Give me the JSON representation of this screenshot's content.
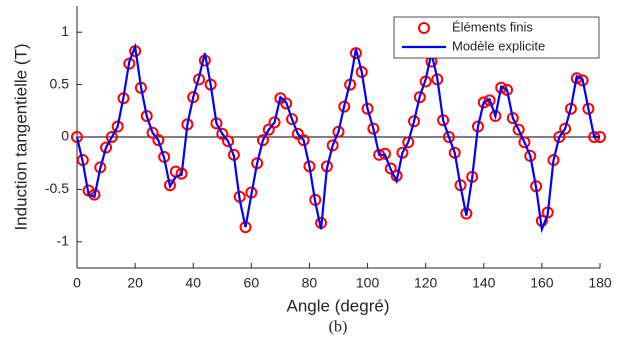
{
  "chart_data": {
    "type": "line",
    "xlabel": "Angle (degré)",
    "ylabel": "Induction tangentielle (T)",
    "caption": "(b)",
    "x": [
      0,
      2,
      4,
      6,
      8,
      10,
      12,
      14,
      16,
      18,
      20,
      22,
      24,
      26,
      28,
      30,
      32,
      34,
      36,
      38,
      40,
      42,
      44,
      46,
      48,
      50,
      52,
      54,
      56,
      58,
      60,
      62,
      64,
      66,
      68,
      70,
      72,
      74,
      76,
      78,
      80,
      82,
      84,
      86,
      88,
      90,
      92,
      94,
      96,
      98,
      100,
      102,
      104,
      106,
      108,
      110,
      112,
      114,
      116,
      118,
      120,
      122,
      124,
      126,
      128,
      130,
      132,
      134,
      136,
      138,
      140,
      142,
      144,
      146,
      148,
      150,
      152,
      154,
      156,
      158,
      160,
      162,
      164,
      166,
      168,
      170,
      172,
      174,
      176,
      178,
      180
    ],
    "series": [
      {
        "name": "Éléments finis",
        "color": "#ff0000",
        "marker": "circle",
        "values": [
          0,
          -0.22,
          -0.51,
          -0.55,
          -0.29,
          -0.1,
          0,
          0.1,
          0.37,
          0.7,
          0.82,
          0.47,
          0.2,
          0.04,
          -0.03,
          -0.19,
          -0.46,
          -0.33,
          -0.35,
          0.12,
          0.38,
          0.55,
          0.73,
          0.5,
          0.13,
          0.03,
          -0.04,
          -0.17,
          -0.57,
          -0.86,
          -0.53,
          -0.25,
          -0.03,
          0.07,
          0.14,
          0.37,
          0.32,
          0.17,
          0.03,
          -0.03,
          -0.28,
          -0.6,
          -0.82,
          -0.28,
          -0.08,
          0.05,
          0.29,
          0.5,
          0.8,
          0.62,
          0.27,
          0.08,
          -0.17,
          -0.16,
          -0.3,
          -0.37,
          -0.15,
          -0.05,
          0.15,
          0.38,
          0.53,
          0.72,
          0.55,
          0.16,
          0,
          -0.15,
          -0.46,
          -0.73,
          -0.38,
          0.1,
          0.33,
          0.35,
          0.2,
          0.47,
          0.45,
          0.18,
          0.07,
          -0.05,
          -0.18,
          -0.47,
          -0.8,
          -0.72,
          -0.22,
          0,
          0.08,
          0.27,
          0.56,
          0.54,
          0.27,
          0,
          0
        ]
      },
      {
        "name": "Modèle explicite",
        "color": "#0000ff",
        "marker": "line",
        "values": [
          0,
          -0.24,
          -0.55,
          -0.57,
          -0.3,
          -0.1,
          0,
          0.1,
          0.38,
          0.72,
          0.86,
          0.48,
          0.2,
          0.04,
          -0.03,
          -0.2,
          -0.47,
          -0.38,
          -0.36,
          0.12,
          0.38,
          0.57,
          0.8,
          0.5,
          0.13,
          0.03,
          -0.04,
          -0.18,
          -0.6,
          -0.86,
          -0.55,
          -0.25,
          -0.03,
          0.07,
          0.14,
          0.38,
          0.33,
          0.17,
          0.03,
          -0.03,
          -0.28,
          -0.62,
          -0.88,
          -0.3,
          -0.08,
          0.05,
          0.3,
          0.52,
          0.84,
          0.62,
          0.27,
          0.08,
          -0.17,
          -0.17,
          -0.31,
          -0.42,
          -0.15,
          -0.05,
          0.15,
          0.39,
          0.55,
          0.8,
          0.56,
          0.16,
          0,
          -0.15,
          -0.47,
          -0.75,
          -0.39,
          0.1,
          0.33,
          0.36,
          0.2,
          0.48,
          0.45,
          0.18,
          0.07,
          -0.05,
          -0.18,
          -0.48,
          -0.88,
          -0.74,
          -0.22,
          0,
          0.08,
          0.28,
          0.58,
          0.55,
          0.27,
          0,
          0
        ]
      }
    ],
    "xlim": [
      0,
      180
    ],
    "xticks": [
      0,
      20,
      40,
      60,
      80,
      100,
      120,
      140,
      160,
      180
    ],
    "ylim": [
      -1.25,
      1.25
    ],
    "yticks": [
      -1,
      -0.5,
      0,
      0.5,
      1
    ],
    "zero_line": true,
    "legend": "upper right"
  }
}
